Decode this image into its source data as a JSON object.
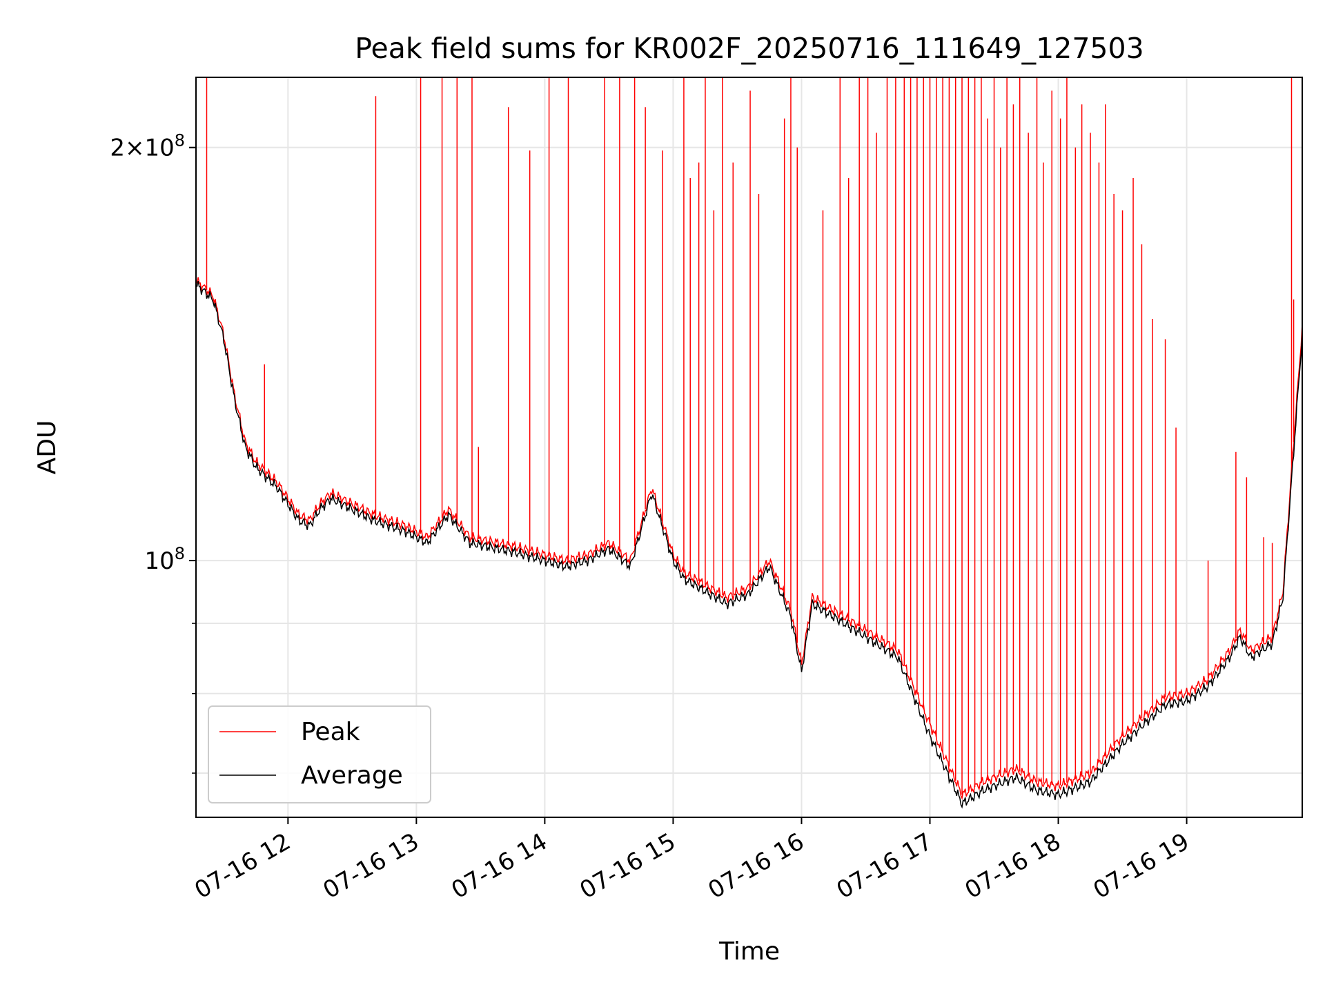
{
  "chart_data": {
    "type": "line",
    "title": "Peak field sums for KR002F_20250716_111649_127503",
    "xlabel": "Time",
    "ylabel": "ADU",
    "yscale": "log",
    "xlim": [
      "2025-07-16T11:17",
      "2025-07-16T19:54"
    ],
    "ylim": [
      65000000,
      225000000
    ],
    "x_ticks": [
      {
        "t": "2025-07-16T12:00",
        "label": "07-16 12"
      },
      {
        "t": "2025-07-16T13:00",
        "label": "07-16 13"
      },
      {
        "t": "2025-07-16T14:00",
        "label": "07-16 14"
      },
      {
        "t": "2025-07-16T15:00",
        "label": "07-16 15"
      },
      {
        "t": "2025-07-16T16:00",
        "label": "07-16 16"
      },
      {
        "t": "2025-07-16T17:00",
        "label": "07-16 17"
      },
      {
        "t": "2025-07-16T18:00",
        "label": "07-16 18"
      },
      {
        "t": "2025-07-16T19:00",
        "label": "07-16 19"
      }
    ],
    "y_major_ticks": [
      {
        "v": 100000000,
        "base": "10",
        "exp": "8"
      },
      {
        "v": 200000000,
        "base": "2×10",
        "exp": "8"
      }
    ],
    "y_minor_ticks": [
      70000000,
      80000000,
      90000000
    ],
    "grid": true,
    "legend_position": "lower-left",
    "series": [
      {
        "name": "Peak",
        "color": "#ff0000",
        "baseline": [
          [
            "11:17",
            160000000
          ],
          [
            "11:25",
            156000000
          ],
          [
            "11:30",
            146000000
          ],
          [
            "11:35",
            132000000
          ],
          [
            "11:40",
            122000000
          ],
          [
            "11:45",
            118000000
          ],
          [
            "11:55",
            114000000
          ],
          [
            "12:05",
            108000000
          ],
          [
            "12:10",
            107000000
          ],
          [
            "12:15",
            110000000
          ],
          [
            "12:20",
            112000000
          ],
          [
            "12:30",
            110000000
          ],
          [
            "12:40",
            108000000
          ],
          [
            "12:55",
            106000000
          ],
          [
            "13:05",
            104000000
          ],
          [
            "13:15",
            109000000
          ],
          [
            "13:25",
            104000000
          ],
          [
            "13:45",
            102500000
          ],
          [
            "14:00",
            101000000
          ],
          [
            "14:10",
            100000000
          ],
          [
            "14:20",
            101000000
          ],
          [
            "14:30",
            103000000
          ],
          [
            "14:40",
            100000000
          ],
          [
            "14:50",
            113000000
          ],
          [
            "15:00",
            101000000
          ],
          [
            "15:05",
            98000000
          ],
          [
            "15:15",
            96000000
          ],
          [
            "15:25",
            94000000
          ],
          [
            "15:35",
            95500000
          ],
          [
            "15:45",
            100000000
          ],
          [
            "15:55",
            92000000
          ],
          [
            "16:00",
            84000000
          ],
          [
            "16:05",
            94000000
          ],
          [
            "16:15",
            92000000
          ],
          [
            "16:30",
            89000000
          ],
          [
            "16:45",
            86000000
          ],
          [
            "17:00",
            76000000
          ],
          [
            "17:15",
            67500000
          ],
          [
            "17:25",
            69000000
          ],
          [
            "17:40",
            70500000
          ],
          [
            "17:50",
            69000000
          ],
          [
            "18:00",
            68500000
          ],
          [
            "18:15",
            70000000
          ],
          [
            "18:30",
            74500000
          ],
          [
            "18:40",
            77000000
          ],
          [
            "18:50",
            79500000
          ],
          [
            "19:00",
            80000000
          ],
          [
            "19:10",
            82000000
          ],
          [
            "19:20",
            86000000
          ],
          [
            "19:25",
            89000000
          ],
          [
            "19:30",
            86000000
          ],
          [
            "19:40",
            88000000
          ],
          [
            "19:45",
            95000000
          ],
          [
            "19:50",
            122000000
          ],
          [
            "19:54",
            148000000
          ]
        ],
        "spikes": [
          [
            "11:22",
            225000000
          ],
          [
            "11:49",
            139000000
          ],
          [
            "12:41",
            218000000
          ],
          [
            "13:02",
            225000000
          ],
          [
            "13:12",
            225000000
          ],
          [
            "13:19",
            225000000
          ],
          [
            "13:26",
            225000000
          ],
          [
            "13:29",
            121000000
          ],
          [
            "13:43",
            214000000
          ],
          [
            "13:53",
            199000000
          ],
          [
            "14:02",
            225000000
          ],
          [
            "14:11",
            225000000
          ],
          [
            "14:28",
            225000000
          ],
          [
            "14:35",
            225000000
          ],
          [
            "14:42",
            225000000
          ],
          [
            "14:47",
            214000000
          ],
          [
            "14:55",
            199000000
          ],
          [
            "15:05",
            225000000
          ],
          [
            "15:08",
            190000000
          ],
          [
            "15:12",
            195000000
          ],
          [
            "15:15",
            225000000
          ],
          [
            "15:19",
            180000000
          ],
          [
            "15:23",
            225000000
          ],
          [
            "15:28",
            195000000
          ],
          [
            "15:36",
            220000000
          ],
          [
            "15:40",
            185000000
          ],
          [
            "15:52",
            210000000
          ],
          [
            "15:55",
            225000000
          ],
          [
            "15:58",
            200000000
          ],
          [
            "16:10",
            180000000
          ],
          [
            "16:18",
            225000000
          ],
          [
            "16:22",
            190000000
          ],
          [
            "16:27",
            225000000
          ],
          [
            "16:31",
            225000000
          ],
          [
            "16:35",
            205000000
          ],
          [
            "16:40",
            225000000
          ],
          [
            "16:44",
            225000000
          ],
          [
            "16:48",
            225000000
          ],
          [
            "16:51",
            225000000
          ],
          [
            "16:54",
            225000000
          ],
          [
            "16:57",
            225000000
          ],
          [
            "17:00",
            225000000
          ],
          [
            "17:03",
            225000000
          ],
          [
            "17:06",
            225000000
          ],
          [
            "17:09",
            225000000
          ],
          [
            "17:12",
            225000000
          ],
          [
            "17:15",
            225000000
          ],
          [
            "17:18",
            225000000
          ],
          [
            "17:21",
            225000000
          ],
          [
            "17:24",
            225000000
          ],
          [
            "17:27",
            210000000
          ],
          [
            "17:30",
            225000000
          ],
          [
            "17:33",
            200000000
          ],
          [
            "17:36",
            225000000
          ],
          [
            "17:39",
            215000000
          ],
          [
            "17:42",
            225000000
          ],
          [
            "17:46",
            205000000
          ],
          [
            "17:50",
            225000000
          ],
          [
            "17:53",
            195000000
          ],
          [
            "17:57",
            220000000
          ],
          [
            "18:01",
            210000000
          ],
          [
            "18:04",
            225000000
          ],
          [
            "18:08",
            200000000
          ],
          [
            "18:11",
            215000000
          ],
          [
            "18:15",
            205000000
          ],
          [
            "18:19",
            195000000
          ],
          [
            "18:22",
            215000000
          ],
          [
            "18:26",
            185000000
          ],
          [
            "18:30",
            180000000
          ],
          [
            "18:35",
            190000000
          ],
          [
            "18:39",
            170000000
          ],
          [
            "18:44",
            150000000
          ],
          [
            "18:50",
            145000000
          ],
          [
            "18:55",
            125000000
          ],
          [
            "19:10",
            100000000
          ],
          [
            "19:23",
            120000000
          ],
          [
            "19:28",
            115000000
          ],
          [
            "19:36",
            104000000
          ],
          [
            "19:40",
            103000000
          ],
          [
            "19:49",
            225000000
          ],
          [
            "19:50",
            155000000
          ]
        ]
      },
      {
        "name": "Average",
        "color": "#000000",
        "baseline": [
          [
            "11:17",
            159000000
          ],
          [
            "11:25",
            155000000
          ],
          [
            "11:30",
            145000000
          ],
          [
            "11:35",
            131000000
          ],
          [
            "11:40",
            121000000
          ],
          [
            "11:45",
            117000000
          ],
          [
            "11:55",
            113000000
          ],
          [
            "12:05",
            107000000
          ],
          [
            "12:10",
            106000000
          ],
          [
            "12:15",
            109000000
          ],
          [
            "12:20",
            111000000
          ],
          [
            "12:30",
            109000000
          ],
          [
            "12:40",
            107000000
          ],
          [
            "12:55",
            105000000
          ],
          [
            "13:05",
            103000000
          ],
          [
            "13:15",
            108000000
          ],
          [
            "13:25",
            103000000
          ],
          [
            "13:45",
            101500000
          ],
          [
            "14:00",
            100000000
          ],
          [
            "14:10",
            99000000
          ],
          [
            "14:20",
            100000000
          ],
          [
            "14:30",
            102000000
          ],
          [
            "14:40",
            99000000
          ],
          [
            "14:50",
            112000000
          ],
          [
            "15:00",
            100000000
          ],
          [
            "15:05",
            97000000
          ],
          [
            "15:15",
            95000000
          ],
          [
            "15:25",
            93000000
          ],
          [
            "15:35",
            94500000
          ],
          [
            "15:45",
            99000000
          ],
          [
            "15:55",
            91000000
          ],
          [
            "16:00",
            83000000
          ],
          [
            "16:05",
            93000000
          ],
          [
            "16:15",
            91000000
          ],
          [
            "16:30",
            88000000
          ],
          [
            "16:45",
            85000000
          ],
          [
            "17:00",
            74500000
          ],
          [
            "17:15",
            66500000
          ],
          [
            "17:25",
            68000000
          ],
          [
            "17:40",
            69500000
          ],
          [
            "17:50",
            68000000
          ],
          [
            "18:00",
            67500000
          ],
          [
            "18:15",
            69000000
          ],
          [
            "18:30",
            73500000
          ],
          [
            "18:40",
            76000000
          ],
          [
            "18:50",
            78500000
          ],
          [
            "19:00",
            79000000
          ],
          [
            "19:10",
            81000000
          ],
          [
            "19:20",
            85000000
          ],
          [
            "19:25",
            88000000
          ],
          [
            "19:30",
            85000000
          ],
          [
            "19:40",
            87000000
          ],
          [
            "19:45",
            94000000
          ],
          [
            "19:50",
            120000000
          ],
          [
            "19:54",
            146000000
          ]
        ]
      }
    ]
  }
}
